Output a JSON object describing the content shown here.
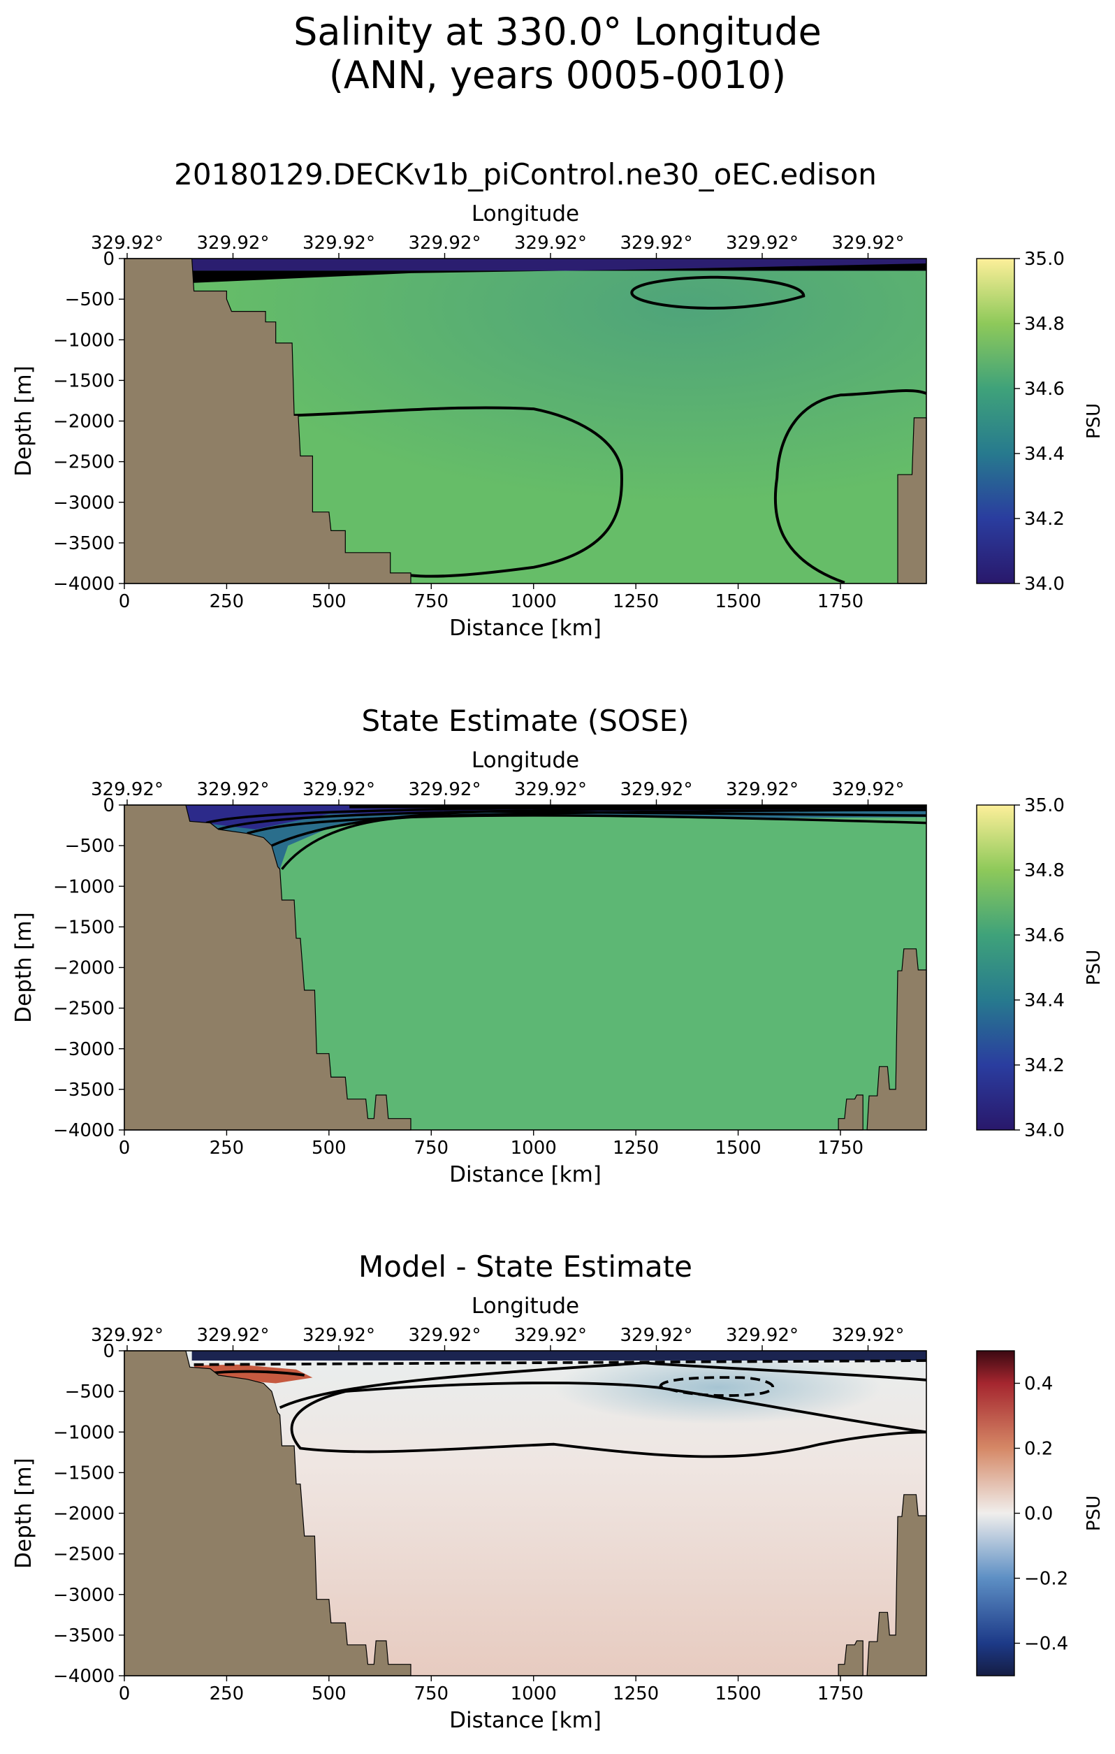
{
  "figure": {
    "title_line1": "Salinity at 330.0° Longitude",
    "title_line2": "(ANN, years 0005-0010)"
  },
  "chart_data": [
    {
      "type": "heatmap",
      "title": "20180129.DECKv1b_piControl.ne30_oEC.edison",
      "xlabel": "Distance [km]",
      "ylabel": "Depth [m]",
      "top_axis_label": "Longitude",
      "top_tick_labels": [
        "329.92°",
        "329.92°",
        "329.92°",
        "329.92°",
        "329.92°",
        "329.92°",
        "329.92°",
        "329.92°"
      ],
      "xlim": [
        0,
        1960
      ],
      "ylim": [
        -4000,
        0
      ],
      "x_ticks": [
        0,
        250,
        500,
        750,
        1000,
        1250,
        1500,
        1750
      ],
      "y_ticks": [
        0,
        -500,
        -1000,
        -1500,
        -2000,
        -2500,
        -3000,
        -3500,
        -4000
      ],
      "x_tick_labels": [
        "0",
        "250",
        "500",
        "750",
        "1000",
        "1250",
        "1500",
        "1750"
      ],
      "y_tick_labels": [
        "0",
        "−500",
        "−1000",
        "−1500",
        "−2000",
        "−2500",
        "−3000",
        "−3500",
        "−4000"
      ],
      "colormap": "haline",
      "colorbar": {
        "label": "PSU",
        "range": [
          34.0,
          35.0
        ],
        "ticks": [
          35.0,
          34.8,
          34.6,
          34.4,
          34.2,
          34.0
        ],
        "tick_labels": [
          "35.0",
          "34.8",
          "34.6",
          "34.4",
          "34.2",
          "34.0"
        ]
      },
      "field_value": 34.68,
      "surface_value": 34.1,
      "surface_layer_depth": 150,
      "land_boundary_depths": [
        [
          0,
          0
        ],
        [
          165,
          0
        ],
        [
          170,
          -400
        ],
        [
          250,
          -400
        ],
        [
          250,
          -500
        ],
        [
          262,
          -650
        ],
        [
          345,
          -650
        ],
        [
          345,
          -780
        ],
        [
          370,
          -780
        ],
        [
          370,
          -1040
        ],
        [
          410,
          -1040
        ],
        [
          415,
          -1930
        ],
        [
          425,
          -1930
        ],
        [
          430,
          -2430
        ],
        [
          460,
          -2430
        ],
        [
          460,
          -3120
        ],
        [
          500,
          -3120
        ],
        [
          505,
          -3350
        ],
        [
          540,
          -3350
        ],
        [
          540,
          -3620
        ],
        [
          650,
          -3620
        ],
        [
          650,
          -3870
        ],
        [
          700,
          -3870
        ],
        [
          700,
          -4000
        ]
      ],
      "right_land_depths": [
        [
          1960,
          -1960
        ],
        [
          1930,
          -1960
        ],
        [
          1925,
          -2660
        ],
        [
          1890,
          -2660
        ],
        [
          1890,
          -4000
        ]
      ]
    },
    {
      "type": "heatmap",
      "title": "State Estimate (SOSE)",
      "xlabel": "Distance [km]",
      "ylabel": "Depth [m]",
      "top_axis_label": "Longitude",
      "top_tick_labels": [
        "329.92°",
        "329.92°",
        "329.92°",
        "329.92°",
        "329.92°",
        "329.92°",
        "329.92°",
        "329.92°"
      ],
      "xlim": [
        0,
        1960
      ],
      "ylim": [
        -4000,
        0
      ],
      "x_ticks": [
        0,
        250,
        500,
        750,
        1000,
        1250,
        1500,
        1750
      ],
      "y_ticks": [
        0,
        -500,
        -1000,
        -1500,
        -2000,
        -2500,
        -3000,
        -3500,
        -4000
      ],
      "x_tick_labels": [
        "0",
        "250",
        "500",
        "750",
        "1000",
        "1250",
        "1500",
        "1750"
      ],
      "y_tick_labels": [
        "0",
        "−500",
        "−1000",
        "−1500",
        "−2000",
        "−2500",
        "−3000",
        "−3500",
        "−4000"
      ],
      "colormap": "haline",
      "colorbar": {
        "label": "PSU",
        "range": [
          34.0,
          35.0
        ],
        "ticks": [
          35.0,
          34.8,
          34.6,
          34.4,
          34.2,
          34.0
        ],
        "tick_labels": [
          "35.0",
          "34.8",
          "34.6",
          "34.4",
          "34.2",
          "34.0"
        ]
      },
      "field_value": 34.64
    },
    {
      "type": "heatmap",
      "title": "Model - State Estimate",
      "xlabel": "Distance [km]",
      "ylabel": "Depth [m]",
      "top_axis_label": "Longitude",
      "top_tick_labels": [
        "329.92°",
        "329.92°",
        "329.92°",
        "329.92°",
        "329.92°",
        "329.92°",
        "329.92°",
        "329.92°"
      ],
      "xlim": [
        0,
        1960
      ],
      "ylim": [
        -4000,
        0
      ],
      "x_ticks": [
        0,
        250,
        500,
        750,
        1000,
        1250,
        1500,
        1750
      ],
      "y_ticks": [
        0,
        -500,
        -1000,
        -1500,
        -2000,
        -2500,
        -3000,
        -3500,
        -4000
      ],
      "x_tick_labels": [
        "0",
        "250",
        "500",
        "750",
        "1000",
        "1250",
        "1500",
        "1750"
      ],
      "y_tick_labels": [
        "0",
        "−500",
        "−1000",
        "−1500",
        "−2000",
        "−2500",
        "−3000",
        "−3500",
        "−4000"
      ],
      "colormap": "balance",
      "colorbar": {
        "label": "PSU",
        "range": [
          -0.5,
          0.5
        ],
        "ticks": [
          0.4,
          0.2,
          0.0,
          -0.2,
          -0.4
        ],
        "tick_labels": [
          "0.4",
          "0.2",
          "0.0",
          "−0.2",
          "−0.4"
        ]
      },
      "field_value": 0.04
    }
  ],
  "land_color": "#8f7f66",
  "contour_color": "#000000"
}
